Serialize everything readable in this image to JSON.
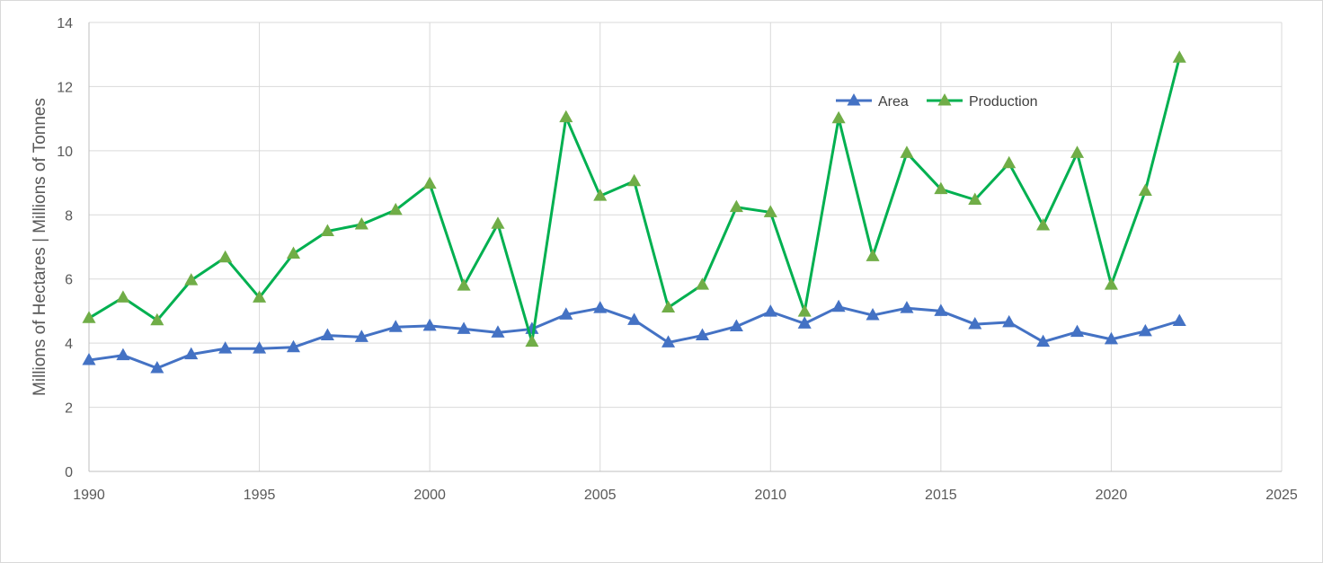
{
  "chart_data": {
    "type": "line",
    "title": "",
    "xlabel": "",
    "ylabel": "Millions of Hectares | Millions of Tonnes",
    "xlim": [
      1990,
      2025
    ],
    "ylim": [
      0,
      14
    ],
    "x_ticks": [
      1990,
      1995,
      2000,
      2005,
      2010,
      2015,
      2020,
      2025
    ],
    "y_ticks": [
      0,
      2,
      4,
      6,
      8,
      10,
      12,
      14
    ],
    "grid": true,
    "legend_position": "top-right",
    "x": [
      1990,
      1991,
      1992,
      1993,
      1994,
      1995,
      1996,
      1997,
      1998,
      1999,
      2000,
      2001,
      2002,
      2003,
      2004,
      2005,
      2006,
      2007,
      2008,
      2009,
      2010,
      2011,
      2012,
      2013,
      2014,
      2015,
      2016,
      2017,
      2018,
      2019,
      2020,
      2021,
      2022
    ],
    "series": [
      {
        "name": "Area",
        "color": "#4472c4",
        "marker": "triangle",
        "values": [
          3.47,
          3.62,
          3.22,
          3.65,
          3.83,
          3.83,
          3.87,
          4.24,
          4.19,
          4.5,
          4.54,
          4.44,
          4.33,
          4.44,
          4.89,
          5.09,
          4.72,
          4.02,
          4.24,
          4.52,
          4.98,
          4.61,
          5.13,
          4.87,
          5.09,
          5.0,
          4.59,
          4.65,
          4.04,
          4.35,
          4.12,
          4.37,
          4.69
        ]
      },
      {
        "name": "Production",
        "color": "#00b050",
        "marker_color": "#70ad47",
        "marker": "triangle",
        "values": [
          4.78,
          5.42,
          4.71,
          5.96,
          6.67,
          5.42,
          6.79,
          7.49,
          7.7,
          8.15,
          8.97,
          5.79,
          7.72,
          4.04,
          11.04,
          8.59,
          9.05,
          5.11,
          5.82,
          8.24,
          8.08,
          4.98,
          11.01,
          6.71,
          9.93,
          8.8,
          8.47,
          9.61,
          7.67,
          9.93,
          5.82,
          8.75,
          12.9
        ]
      }
    ]
  }
}
